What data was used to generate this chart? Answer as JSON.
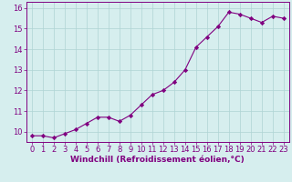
{
  "x": [
    0,
    1,
    2,
    3,
    4,
    5,
    6,
    7,
    8,
    9,
    10,
    11,
    12,
    13,
    14,
    15,
    16,
    17,
    18,
    19,
    20,
    21,
    22,
    23
  ],
  "y": [
    9.8,
    9.8,
    9.7,
    9.9,
    10.1,
    10.4,
    10.7,
    10.7,
    10.5,
    10.8,
    11.3,
    11.8,
    12.0,
    12.4,
    13.0,
    14.1,
    14.6,
    15.1,
    15.8,
    15.7,
    15.5,
    15.3,
    15.6,
    15.5
  ],
  "line_color": "#800080",
  "marker": "D",
  "marker_size": 2.2,
  "bg_color": "#d6eeee",
  "grid_color": "#aed4d4",
  "xlabel": "Windchill (Refroidissement éolien,°C)",
  "xlim": [
    -0.5,
    23.5
  ],
  "ylim": [
    9.5,
    16.3
  ],
  "yticks": [
    10,
    11,
    12,
    13,
    14,
    15,
    16
  ],
  "xticks": [
    0,
    1,
    2,
    3,
    4,
    5,
    6,
    7,
    8,
    9,
    10,
    11,
    12,
    13,
    14,
    15,
    16,
    17,
    18,
    19,
    20,
    21,
    22,
    23
  ],
  "tick_color": "#800080",
  "label_fontsize": 6.5,
  "tick_fontsize": 6.0
}
